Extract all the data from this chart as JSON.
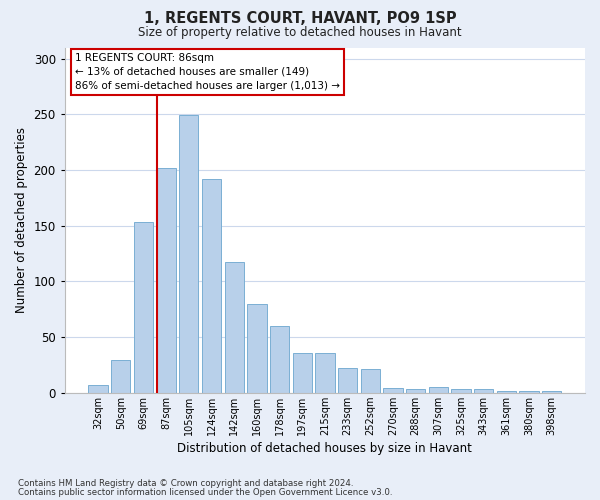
{
  "title1": "1, REGENTS COURT, HAVANT, PO9 1SP",
  "title2": "Size of property relative to detached houses in Havant",
  "xlabel": "Distribution of detached houses by size in Havant",
  "ylabel": "Number of detached properties",
  "categories": [
    "32sqm",
    "50sqm",
    "69sqm",
    "87sqm",
    "105sqm",
    "124sqm",
    "142sqm",
    "160sqm",
    "178sqm",
    "197sqm",
    "215sqm",
    "233sqm",
    "252sqm",
    "270sqm",
    "288sqm",
    "307sqm",
    "325sqm",
    "343sqm",
    "361sqm",
    "380sqm",
    "398sqm"
  ],
  "values": [
    7,
    29,
    153,
    202,
    249,
    192,
    117,
    80,
    60,
    36,
    36,
    22,
    21,
    4,
    3,
    5,
    3,
    3,
    2,
    2,
    2
  ],
  "bar_color": "#b8d0ea",
  "bar_edge_color": "#7aafd4",
  "vline_index": 3,
  "annotation_lines": [
    "1 REGENTS COURT: 86sqm",
    "← 13% of detached houses are smaller (149)",
    "86% of semi-detached houses are larger (1,013) →"
  ],
  "annotation_box_facecolor": "#ffffff",
  "annotation_border_color": "#cc0000",
  "vline_color": "#cc0000",
  "ylim": [
    0,
    310
  ],
  "yticks": [
    0,
    50,
    100,
    150,
    200,
    250,
    300
  ],
  "grid_color": "#ccd8ec",
  "footnote1": "Contains HM Land Registry data © Crown copyright and database right 2024.",
  "footnote2": "Contains public sector information licensed under the Open Government Licence v3.0.",
  "fig_bg_color": "#e8eef8",
  "plot_bg_color": "#ffffff"
}
